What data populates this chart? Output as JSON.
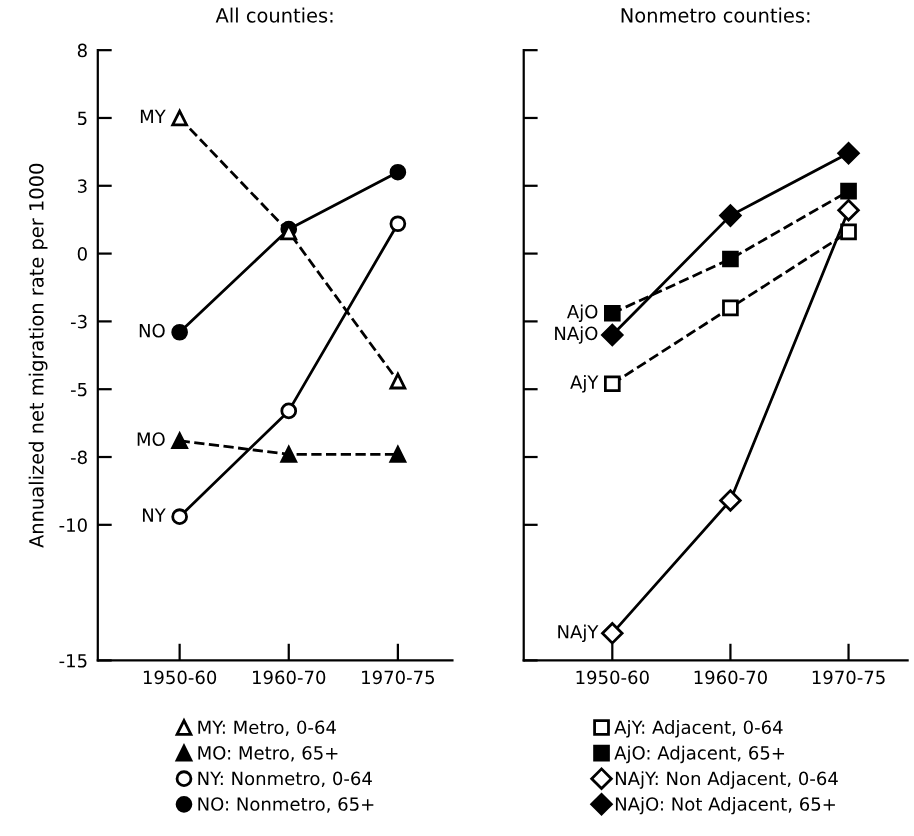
{
  "chart_data": [
    {
      "type": "line",
      "title": "All counties:",
      "ylabel": "Annualized net migration rate per 1000",
      "categories": [
        "1950-60",
        "1960-70",
        "1970-75"
      ],
      "ylim": [
        -15,
        7.5
      ],
      "yticks": [
        {
          "value": 7.5,
          "label": "8"
        },
        5,
        {
          "value": 2.5,
          "label": "3"
        },
        0,
        {
          "value": -2.5,
          "label": "-3"
        },
        -5,
        {
          "value": -7.5,
          "label": "-8"
        },
        -10,
        -15
      ],
      "grid": false,
      "legend": "bottom",
      "series": [
        {
          "name": "MY: Metro, 0-64",
          "color": "#000000",
          "marker": "triangle-open",
          "line_style": "dashed",
          "values": [
            5.0,
            0.8,
            -4.7
          ]
        },
        {
          "name": "MO: Metro, 65+",
          "color": "#000000",
          "marker": "triangle",
          "line_style": "dashed",
          "values": [
            -6.9,
            -7.4,
            -7.4
          ]
        },
        {
          "name": "NY: Nonmetro, 0-64",
          "color": "#000000",
          "marker": "circle-open",
          "line_style": "solid",
          "values": [
            -9.7,
            -5.8,
            1.1
          ]
        },
        {
          "name": "NO: Nonmetro, 65+",
          "color": "#000000",
          "marker": "circle",
          "line_style": "solid",
          "values": [
            -2.9,
            0.9,
            3.0
          ]
        }
      ],
      "annotations": [
        {
          "text": "MY",
          "x": "1950-60",
          "y": 5.0
        },
        {
          "text": "MO",
          "x": "1950-60",
          "y": -6.9
        },
        {
          "text": "NY",
          "x": "1950-60",
          "y": -9.7
        },
        {
          "text": "NO",
          "x": "1950-60",
          "y": -2.9
        }
      ]
    },
    {
      "type": "line",
      "title": "Nonmetro counties:",
      "categories": [
        "1950-60",
        "1960-70",
        "1970-75"
      ],
      "ylim": [
        -15,
        7.5
      ],
      "yticks": [
        {
          "value": 7.5,
          "label": null
        },
        {
          "value": 5,
          "label": null
        },
        {
          "value": 2.5,
          "label": null
        },
        {
          "value": 0,
          "label": null
        },
        {
          "value": -2.5,
          "label": null
        },
        {
          "value": -5,
          "label": null
        },
        {
          "value": -7.5,
          "label": null
        },
        {
          "value": -10,
          "label": null
        },
        {
          "value": -15,
          "label": null
        }
      ],
      "tick_labels": "x",
      "grid": false,
      "legend": "bottom",
      "series": [
        {
          "name": "AjY: Adjacent, 0-64",
          "color": "#000000",
          "marker": "square-open",
          "line_style": "dashed",
          "values": [
            -4.8,
            -2.0,
            0.8
          ]
        },
        {
          "name": "AjO: Adjacent, 65+",
          "color": "#000000",
          "marker": "square",
          "line_style": "dashed",
          "values": [
            -2.2,
            -0.2,
            2.3
          ]
        },
        {
          "name": "NAjY: Non Adjacent, 0-64",
          "color": "#000000",
          "marker": "diamond-open",
          "line_style": "solid",
          "values": [
            -14.0,
            -9.1,
            1.6
          ]
        },
        {
          "name": "NAjO: Not Adjacent, 65+",
          "color": "#000000",
          "marker": "diamond",
          "line_style": "solid",
          "values": [
            -3.0,
            1.4,
            3.7
          ]
        }
      ],
      "annotations": [
        {
          "text": "AjY",
          "x": "1950-60",
          "y": -4.8
        },
        {
          "text": "AjO",
          "x": "1950-60",
          "y": -2.2
        },
        {
          "text": "NAjY",
          "x": "1950-60",
          "y": -14.0
        },
        {
          "text": "NAjO",
          "x": "1950-60",
          "y": -3.0
        }
      ]
    }
  ]
}
